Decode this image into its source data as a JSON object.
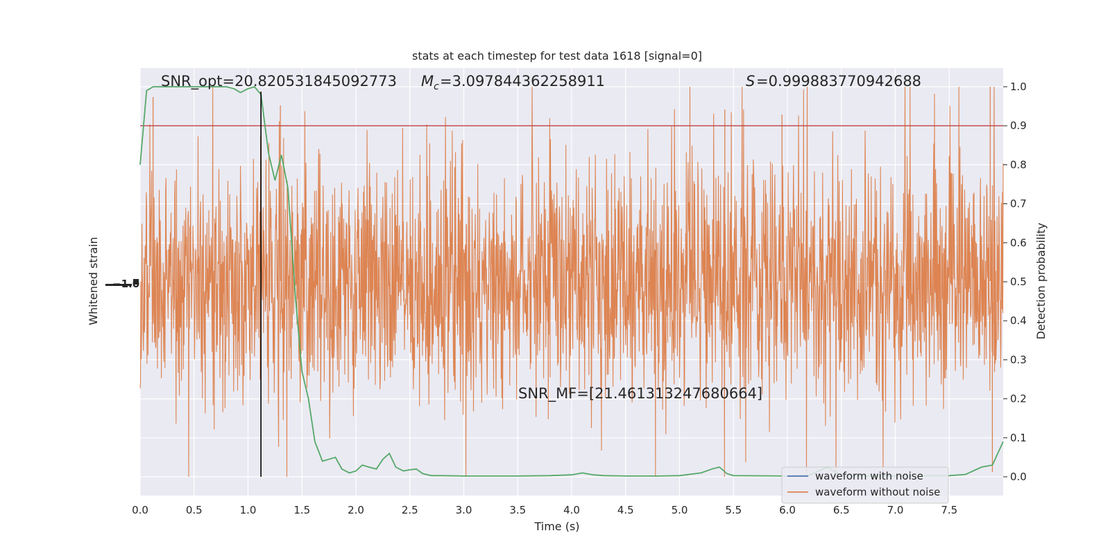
{
  "chart_data": {
    "type": "line",
    "title": "stats at each timestep for test data 1618 [signal=0]",
    "xlabel": "Time (s)",
    "ylabel_left": "Whitened strain",
    "ylabel_right": "Detection probability",
    "xlim": [
      0,
      8
    ],
    "ylim_right": [
      -0.05,
      1.05
    ],
    "x_ticks": [
      "0.0",
      "0.5",
      "1.0",
      "1.5",
      "2.0",
      "2.5",
      "3.0",
      "3.5",
      "4.0",
      "4.5",
      "5.0",
      "5.5",
      "6.0",
      "6.5",
      "7.0",
      "7.5"
    ],
    "y_right_ticks": [
      "0.0",
      "0.1",
      "0.2",
      "0.3",
      "0.4",
      "0.5",
      "0.6",
      "0.7",
      "0.8",
      "0.9",
      "1.0"
    ],
    "grid": true,
    "annotations": {
      "snr_opt": "SNR_opt=20.820531845092773",
      "mc": "=3.097844362258911",
      "s": "=0.999883770942688",
      "snr_mf": "SNR_MF=[21.461313247680664]"
    },
    "threshold": 0.9,
    "marker_time": 1.12,
    "legend": [
      {
        "name": "waveform with noise",
        "color": "#4c72b0"
      },
      {
        "name": "waveform without noise",
        "color": "#dd8452"
      }
    ],
    "strain_color": "#dd8452",
    "probability_color": "#55a868",
    "threshold_color": "#c44e52",
    "series": [
      {
        "name": "Detection probability",
        "x": [
          0.0,
          0.06,
          0.12,
          0.2,
          0.3,
          0.4,
          0.5,
          0.6,
          0.7,
          0.8,
          0.87,
          0.93,
          1.0,
          1.06,
          1.12,
          1.19,
          1.25,
          1.31,
          1.37,
          1.44,
          1.5,
          1.56,
          1.62,
          1.69,
          1.75,
          1.81,
          1.87,
          1.94,
          2.0,
          2.06,
          2.12,
          2.19,
          2.25,
          2.31,
          2.37,
          2.44,
          2.5,
          2.56,
          2.62,
          2.7,
          2.8,
          3.0,
          3.5,
          3.8,
          4.0,
          4.1,
          4.2,
          4.3,
          4.5,
          4.8,
          5.0,
          5.2,
          5.3,
          5.37,
          5.44,
          5.5,
          6.0,
          6.2,
          6.37,
          6.5,
          7.0,
          7.5,
          7.65,
          7.8,
          7.9,
          8.0
        ],
        "y": [
          0.8,
          0.99,
          1.0,
          1.0,
          1.0,
          1.0,
          1.0,
          1.0,
          1.0,
          1.0,
          0.995,
          0.985,
          0.995,
          1.0,
          0.98,
          0.83,
          0.76,
          0.825,
          0.74,
          0.46,
          0.27,
          0.2,
          0.09,
          0.04,
          0.045,
          0.05,
          0.02,
          0.01,
          0.015,
          0.03,
          0.025,
          0.02,
          0.045,
          0.06,
          0.025,
          0.015,
          0.018,
          0.02,
          0.008,
          0.003,
          0.003,
          0.002,
          0.002,
          0.003,
          0.005,
          0.01,
          0.005,
          0.003,
          0.002,
          0.002,
          0.003,
          0.01,
          0.02,
          0.025,
          0.008,
          0.003,
          0.002,
          0.004,
          0.025,
          0.003,
          0.002,
          0.003,
          0.006,
          0.025,
          0.03,
          0.09
        ]
      }
    ]
  }
}
